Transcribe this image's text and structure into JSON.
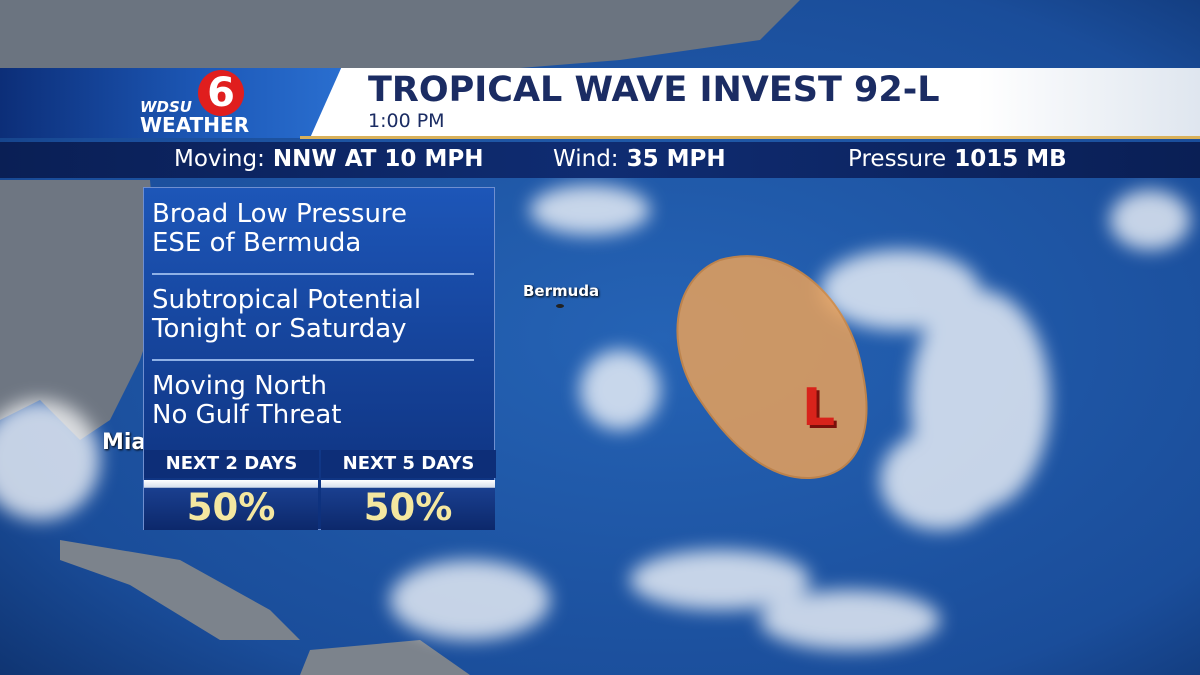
{
  "logo": {
    "channel": "6",
    "station": "WDSU",
    "brand": "WEATHER"
  },
  "header": {
    "title": "TROPICAL WAVE INVEST 92-L",
    "time": "1:00 PM"
  },
  "stats": [
    {
      "label": "Moving:",
      "value": "NNW AT 10 MPH"
    },
    {
      "label": "Wind:",
      "value": "35 MPH"
    },
    {
      "label": "Pressure",
      "value": "1015 MB"
    }
  ],
  "panel": {
    "items": [
      [
        "Broad Low Pressure",
        "ESE of Bermuda"
      ],
      [
        "Subtropical Potential",
        "Tonight or Saturday"
      ],
      [
        "Moving North",
        "No Gulf Threat"
      ]
    ],
    "odds": [
      {
        "label": "NEXT 2 DAYS",
        "value": "50%"
      },
      {
        "label": "NEXT 5 DAYS",
        "value": "50%"
      }
    ]
  },
  "map": {
    "places": [
      "Bermuda",
      "Miami"
    ],
    "low_marker": "L"
  }
}
